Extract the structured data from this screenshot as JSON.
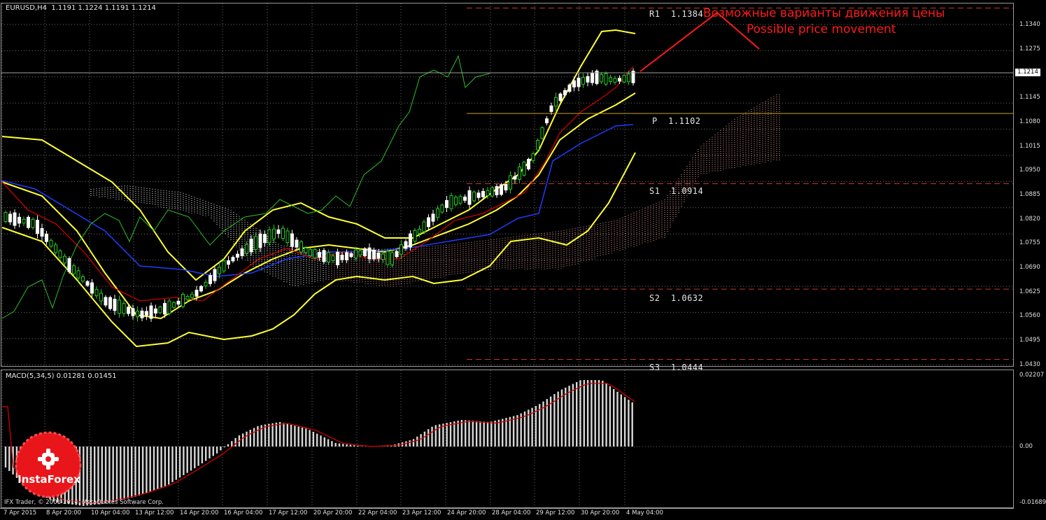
{
  "main_chart": {
    "title": "EURUSD,H4  1.1191 1.1224 1.1191 1.1214",
    "current_price": "1.1214",
    "levels": [
      {
        "name": "R1",
        "label": "R1  1.1384",
        "value": 1.1384
      },
      {
        "name": "P",
        "label": "P  1.1102",
        "value": 1.1102
      },
      {
        "name": "S1",
        "label": "S1  1.0914",
        "value": 1.0914
      },
      {
        "name": "S2",
        "label": "S2  1.0632",
        "value": 1.0632
      },
      {
        "name": "S3",
        "label": "S3  1.0444",
        "value": 1.0444
      }
    ],
    "annotation": {
      "line1": "Возможные варианты движения цены",
      "line2": "Possible price movement"
    },
    "y_ticks": [
      "1.1340",
      "1.1275",
      "1.1214",
      "1.1145",
      "1.1080",
      "1.1015",
      "1.0950",
      "1.0885",
      "1.0820",
      "1.0755",
      "1.0690",
      "1.0625",
      "1.0560",
      "1.0495",
      "1.0430"
    ]
  },
  "macd": {
    "title": "MACD(5,34,5) 0.01281 0.01451",
    "y_ticks": [
      "0.02207",
      "0.00",
      "-0.01689"
    ]
  },
  "x_ticks": [
    "7 Apr 2015",
    "8 Apr 20:00",
    "10 Apr 04:00",
    "13 Apr 12:00",
    "14 Apr 20:00",
    "16 Apr 04:00",
    "17 Apr 12:00",
    "20 Apr 20:00",
    "22 Apr 04:00",
    "23 Apr 12:00",
    "24 Apr 20:00",
    "28 Apr 04:00",
    "29 Apr 12:00",
    "30 Apr 20:00",
    "4 May 04:00"
  ],
  "copyright": "IFX Trader, © 2001-2014, MetaQuotes Software Corp.",
  "logo": {
    "text": "InstaForex"
  },
  "colors": {
    "bollinger": "#ffff33",
    "signal_red": "#cc0000",
    "kijun_blue": "#1e3cff",
    "chikou_green": "#2bbf2b",
    "candle_up": "#22cc22",
    "candle_down": "#ffffff",
    "pivot": "#c8a000",
    "annotation": "#ff1a1a"
  }
}
